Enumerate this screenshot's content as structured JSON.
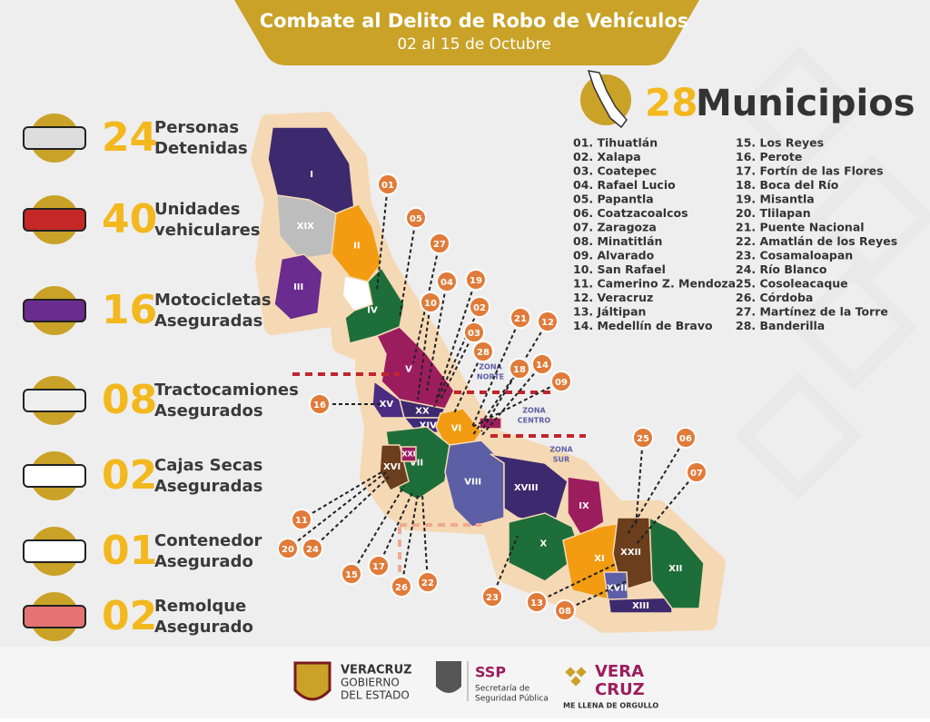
{
  "header": {
    "title": "Combate al Delito de Robo de Vehículos",
    "subtitle": "02 al 15 de Octubre"
  },
  "stats": [
    {
      "number": "24",
      "label": [
        "Personas",
        "Detenidas"
      ]
    },
    {
      "number": "40",
      "label": [
        "Unidades",
        "vehiculares"
      ]
    },
    {
      "number": "16",
      "label": [
        "Motocicletas",
        "Aseguradas"
      ]
    },
    {
      "number": "08",
      "label": [
        "Tractocamiones",
        "Asegurados"
      ]
    },
    {
      "number": "02",
      "label": [
        "Cajas Secas",
        "Aseguradas"
      ]
    },
    {
      "number": "01",
      "label": [
        "Contenedor",
        "Asegurado"
      ]
    },
    {
      "number": "02",
      "label": [
        "Remolque",
        "Asegurado"
      ]
    }
  ],
  "municipios": {
    "count": "28",
    "label": "Municipios",
    "list": [
      "01. Tihuatlán",
      "02. Xalapa",
      "03. Coatepec",
      "04. Rafael Lucio",
      "05. Papantla",
      "06. Coatzacoalcos",
      "07. Zaragoza",
      "08. Minatitlán",
      "09. Alvarado",
      "10.  San Rafael",
      "11. Camerino Z. Mendoza",
      "12. Veracruz",
      "13. Jáltipan",
      "14. Medellín de Bravo",
      "15. Los Reyes",
      "16. Perote",
      "17. Fortín de las Flores",
      "18. Boca del Río",
      "19. Misantla",
      "20. Tlilapan",
      "21. Puente Nacional",
      "22. Amatlán de los Reyes",
      "23. Cosamaloapan",
      "24. Río Blanco",
      "25. Cosoleacaque",
      "26. Córdoba",
      "27. Martínez de la Torre",
      "28. Banderilla"
    ]
  },
  "map": {
    "regions": [
      "I",
      "XIX",
      "II",
      "III",
      "IV",
      "V",
      "XV",
      "XX",
      "XIV",
      "VI",
      "VII",
      "XVI",
      "VIII",
      "XVIII",
      "IX",
      "X",
      "XI",
      "XXII",
      "XVII",
      "XIII",
      "XII",
      "XXI",
      "XXIII"
    ],
    "zones": [
      [
        "ZONA",
        "NORTE"
      ],
      [
        "ZONA",
        "CENTRO"
      ],
      [
        "ZONA",
        "SUR"
      ]
    ],
    "callouts": [
      "01",
      "05",
      "27",
      "04",
      "19",
      "10",
      "02",
      "21",
      "12",
      "03",
      "28",
      "18",
      "14",
      "09",
      "16",
      "25",
      "06",
      "07",
      "11",
      "20",
      "24",
      "15",
      "17",
      "26",
      "22",
      "23",
      "13",
      "08"
    ]
  },
  "footer": {
    "gobierno": [
      "VERACRUZ",
      "GOBIERNO",
      "DEL ESTADO"
    ],
    "ssp": [
      "SSP",
      "Secretaría de",
      "Seguridad Pública"
    ],
    "vera": [
      "VERA",
      "CRUZ",
      "ME LLENA DE ORGULLO"
    ]
  }
}
